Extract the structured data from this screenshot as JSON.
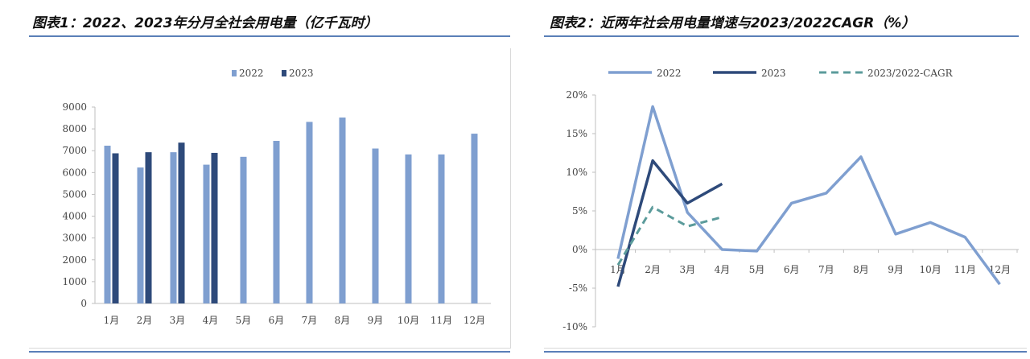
{
  "titles": {
    "chart1": "图表1：2022、2023年分月全社会用电量（亿千瓦时）",
    "chart2": "图表2：近两年社会用电量增速与2023/2022CAGR（%）"
  },
  "colors": {
    "series2022": "#7f9fd0",
    "series2023": "#2e4a7a",
    "seriesCagr": "#5b9b9b",
    "axis": "#bfbfbf",
    "rule": "#5a7fb8"
  },
  "chart_data": [
    {
      "type": "bar",
      "title": "2022、2023年分月全社会用电量（亿千瓦时）",
      "categories": [
        "1月",
        "2月",
        "3月",
        "4月",
        "5月",
        "6月",
        "7月",
        "8月",
        "9月",
        "10月",
        "11月",
        "12月"
      ],
      "series": [
        {
          "name": "2022",
          "values": [
            7230,
            6230,
            6930,
            6360,
            6720,
            7450,
            8320,
            8520,
            7100,
            6830,
            6830,
            7780
          ]
        },
        {
          "name": "2023",
          "values": [
            6880,
            6930,
            7370,
            6900,
            null,
            null,
            null,
            null,
            null,
            null,
            null,
            null
          ]
        }
      ],
      "yticks": [
        "0",
        "1000",
        "2000",
        "3000",
        "4000",
        "5000",
        "6000",
        "7000",
        "8000",
        "9000"
      ],
      "ylim": [
        0,
        9000
      ],
      "legend": "top-center",
      "grid": false
    },
    {
      "type": "line",
      "title": "近两年社会用电量增速与2023/2022CAGR（%）",
      "categories": [
        "1月",
        "2月",
        "3月",
        "4月",
        "5月",
        "6月",
        "7月",
        "8月",
        "9月",
        "10月",
        "11月",
        "12月"
      ],
      "series": [
        {
          "name": "2022",
          "values": [
            -1.2,
            18.5,
            4.8,
            0.0,
            -0.2,
            6.0,
            7.3,
            12.0,
            2.0,
            3.5,
            1.6,
            -4.5
          ]
        },
        {
          "name": "2023",
          "values": [
            -4.8,
            11.5,
            6.0,
            8.5,
            null,
            null,
            null,
            null,
            null,
            null,
            null,
            null
          ]
        },
        {
          "name": "2023/2022-CAGR",
          "values": [
            -2.0,
            5.5,
            3.0,
            4.2,
            null,
            null,
            null,
            null,
            null,
            null,
            null,
            null
          ]
        }
      ],
      "yticks": [
        "-10%",
        "-5%",
        "0%",
        "5%",
        "10%",
        "15%",
        "20%"
      ],
      "ylim": [
        -10,
        20
      ],
      "legend": "top-center",
      "grid": false
    }
  ]
}
